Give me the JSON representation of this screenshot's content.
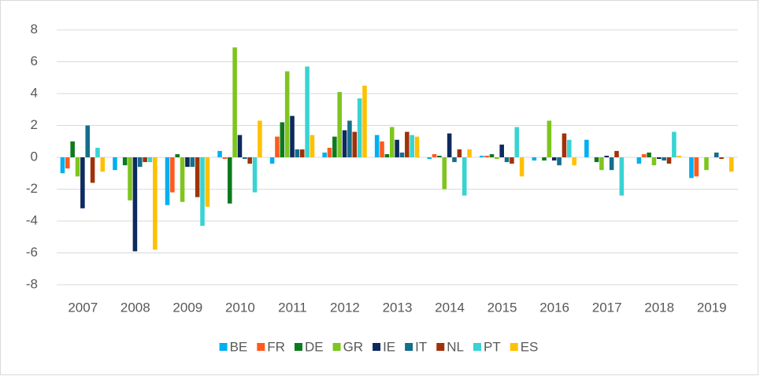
{
  "chart_data": {
    "type": "bar",
    "categories": [
      "2007",
      "2008",
      "2009",
      "2010",
      "2011",
      "2012",
      "2013",
      "2014",
      "2015",
      "2016",
      "2017",
      "2018",
      "2019"
    ],
    "series": [
      {
        "name": "BE",
        "color": "#00b0f0",
        "values": [
          -1.0,
          -0.8,
          -3.0,
          0.4,
          -0.4,
          0.3,
          1.4,
          -0.1,
          0.1,
          -0.2,
          1.1,
          -0.4,
          -1.3
        ]
      },
      {
        "name": "FR",
        "color": "#ff5a1e",
        "values": [
          -0.7,
          0,
          -2.2,
          -0.1,
          1.3,
          0.6,
          1.0,
          0.2,
          0.1,
          0,
          0,
          0.2,
          -1.2
        ]
      },
      {
        "name": "DE",
        "color": "#0e7a1e",
        "values": [
          1.0,
          -0.5,
          0.2,
          -2.9,
          2.2,
          1.3,
          0.2,
          0.1,
          0.2,
          -0.2,
          -0.3,
          0.3,
          0
        ]
      },
      {
        "name": "GR",
        "color": "#7ec51e",
        "values": [
          -1.2,
          -2.7,
          -2.8,
          6.9,
          5.4,
          4.1,
          1.9,
          -2.0,
          -0.1,
          2.3,
          -0.8,
          -0.5,
          -0.8
        ]
      },
      {
        "name": "IE",
        "color": "#0d2a5e",
        "values": [
          -3.2,
          -5.9,
          -0.6,
          1.4,
          2.6,
          1.7,
          1.1,
          1.5,
          0.8,
          -0.2,
          0.1,
          -0.1,
          0
        ]
      },
      {
        "name": "IT",
        "color": "#146e8c",
        "values": [
          2.0,
          -0.6,
          -0.6,
          -0.1,
          0.5,
          2.3,
          0.3,
          -0.3,
          -0.3,
          -0.5,
          -0.8,
          -0.2,
          0.3
        ]
      },
      {
        "name": "NL",
        "color": "#a0320a",
        "values": [
          -1.6,
          -0.3,
          -2.5,
          -0.4,
          0.5,
          1.6,
          1.6,
          0.5,
          -0.4,
          1.5,
          0.4,
          -0.4,
          -0.1
        ]
      },
      {
        "name": "PT",
        "color": "#39d3d3",
        "values": [
          0.6,
          -0.3,
          -4.3,
          -2.2,
          5.7,
          3.7,
          1.4,
          -2.4,
          1.9,
          1.1,
          -2.4,
          1.6,
          0
        ]
      },
      {
        "name": "ES",
        "color": "#ffc000",
        "values": [
          -0.9,
          -5.8,
          -3.1,
          2.3,
          1.4,
          4.5,
          1.3,
          0.5,
          -1.2,
          -0.5,
          0,
          0.1,
          -0.9
        ]
      }
    ],
    "ylim": [
      -8,
      8
    ],
    "yticks": [
      -8,
      -6,
      -4,
      -2,
      0,
      2,
      4,
      6,
      8
    ],
    "grid": true,
    "legend": "bottom"
  }
}
